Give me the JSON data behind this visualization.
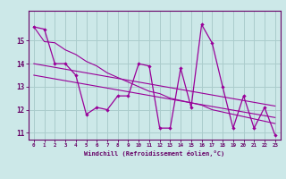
{
  "title": "",
  "xlabel": "Windchill (Refroidissement éolien,°C)",
  "x": [
    0,
    1,
    2,
    3,
    4,
    5,
    6,
    7,
    8,
    9,
    10,
    11,
    12,
    13,
    14,
    15,
    16,
    17,
    18,
    19,
    20,
    21,
    22,
    23
  ],
  "line1": [
    15.6,
    15.5,
    14.0,
    14.0,
    13.5,
    11.8,
    12.1,
    12.0,
    12.6,
    12.6,
    14.0,
    13.9,
    11.2,
    11.2,
    13.8,
    12.1,
    15.7,
    14.9,
    13.0,
    11.2,
    12.6,
    11.2,
    12.1,
    10.9
  ],
  "trend1": [
    15.6,
    14.96,
    14.91,
    14.6,
    14.4,
    14.1,
    13.9,
    13.6,
    13.4,
    13.2,
    13.0,
    12.8,
    12.7,
    12.5,
    12.4,
    12.3,
    12.2,
    12.0,
    11.9,
    11.8,
    11.7,
    11.6,
    11.5,
    11.4
  ],
  "trend2": [
    14.0,
    13.92,
    13.84,
    13.76,
    13.68,
    13.6,
    13.52,
    13.44,
    13.36,
    13.28,
    13.2,
    13.12,
    13.04,
    12.96,
    12.88,
    12.8,
    12.72,
    12.64,
    12.56,
    12.48,
    12.4,
    12.32,
    12.24,
    12.16
  ],
  "trend3": [
    13.5,
    13.42,
    13.34,
    13.26,
    13.18,
    13.1,
    13.02,
    12.94,
    12.86,
    12.78,
    12.7,
    12.62,
    12.54,
    12.46,
    12.38,
    12.3,
    12.22,
    12.14,
    12.06,
    11.98,
    11.9,
    11.82,
    11.74,
    11.66
  ],
  "line_color": "#990099",
  "bg_color": "#cce8e8",
  "grid_color": "#aacccc",
  "tick_color": "#660066",
  "ylim": [
    10.7,
    16.3
  ],
  "xlim": [
    -0.5,
    23.5
  ]
}
